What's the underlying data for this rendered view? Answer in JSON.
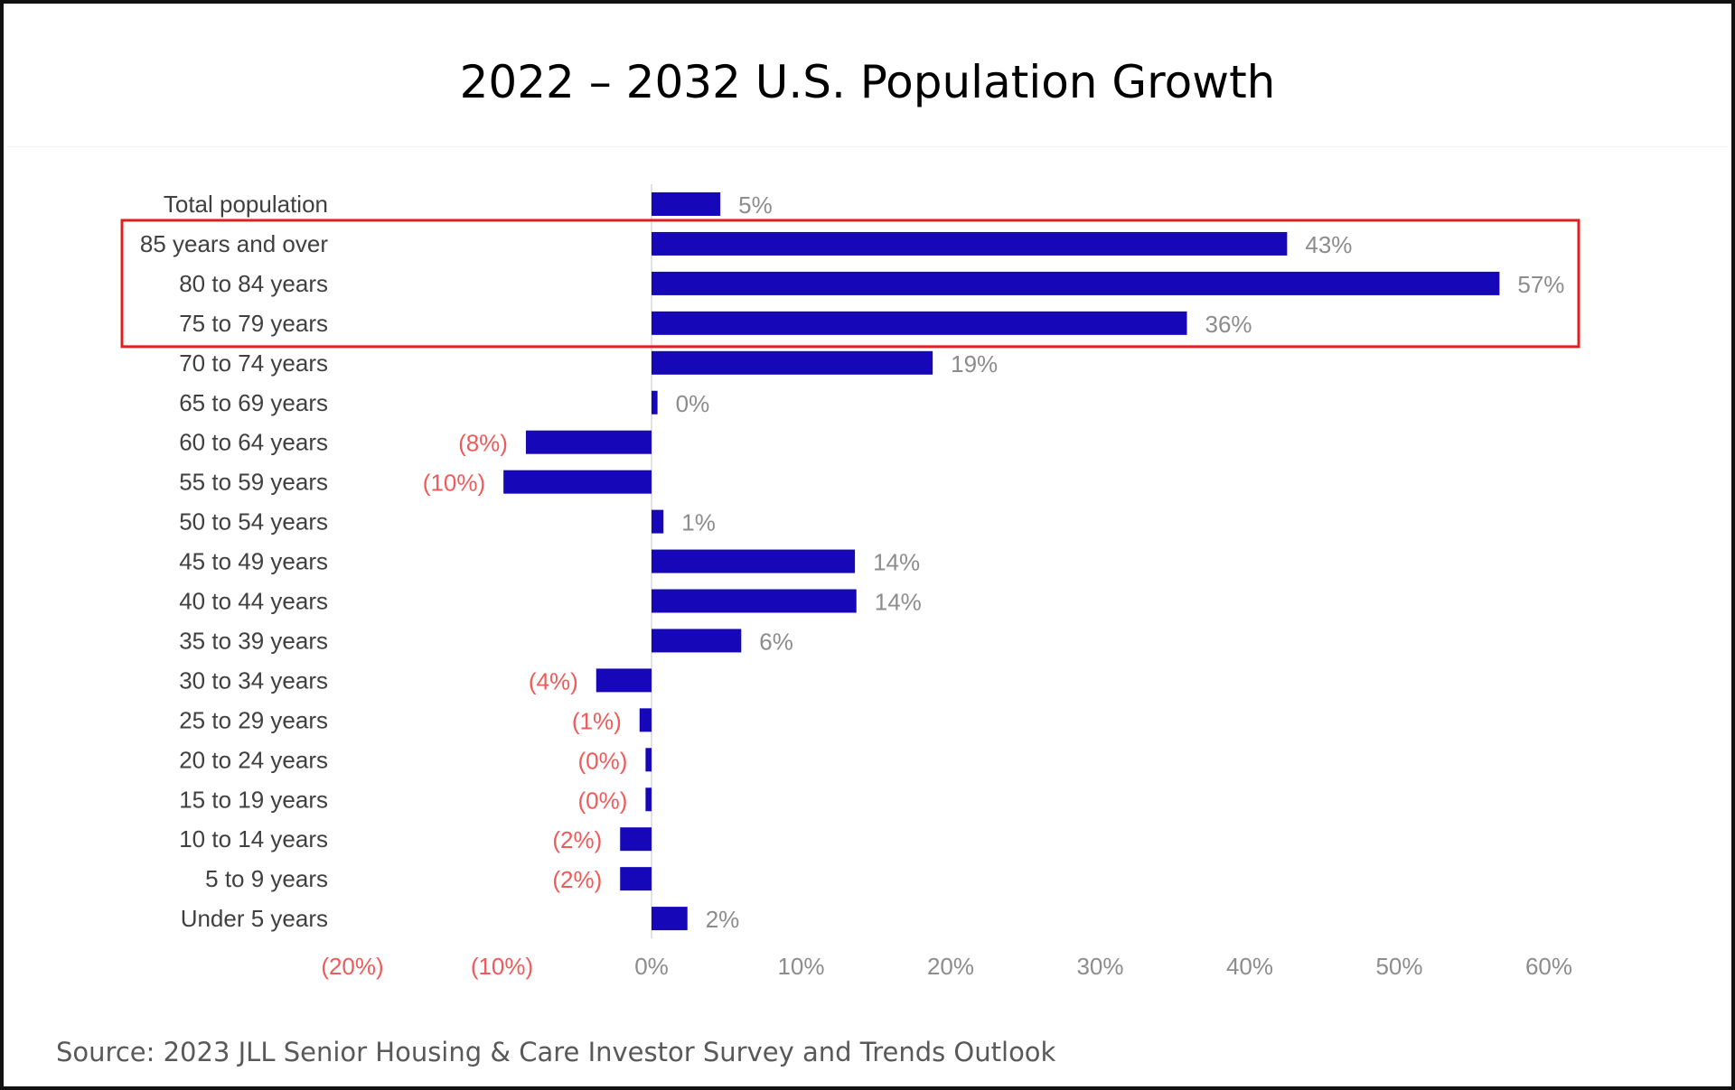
{
  "title": "2022 – 2032 U.S. Population Growth",
  "source": "Source: 2023 JLL Senior Housing & Care Investor Survey and Trends Outlook",
  "colors": {
    "bar": "#1608b8",
    "positive_label": "#8c8c8c",
    "negative_label": "#f05a5a",
    "axis_text": "#8c8c8c",
    "category_text": "#404040",
    "highlight_box": "#e02020"
  },
  "chart_data": {
    "type": "bar",
    "orientation": "horizontal",
    "categories": [
      "Total population",
      "85 years and over",
      "80 to 84 years",
      "75 to 79 years",
      "70 to 74 years",
      "65 to 69 years",
      "60 to 64 years",
      "55 to 59 years",
      "50 to 54 years",
      "45 to 49 years",
      "40 to 44 years",
      "35 to 39 years",
      "30 to 34 years",
      "25 to 29 years",
      "20 to 24 years",
      "15 to 19 years",
      "10 to 14 years",
      "5 to 9 years",
      "Under 5 years"
    ],
    "values": [
      4.6,
      42.5,
      56.7,
      35.8,
      18.8,
      0.4,
      -8.4,
      -9.9,
      0.8,
      13.6,
      13.7,
      6.0,
      -3.7,
      -0.8,
      -0.4,
      -0.4,
      -2.1,
      -2.1,
      2.4
    ],
    "data_labels": [
      "5%",
      "43%",
      "57%",
      "36%",
      "19%",
      "0%",
      "(8%)",
      "(10%)",
      "1%",
      "14%",
      "14%",
      "6%",
      "(4%)",
      "(1%)",
      "(0%)",
      "(0%)",
      "(2%)",
      "(2%)",
      "2%"
    ],
    "x_ticks": [
      -20,
      -10,
      0,
      10,
      20,
      30,
      40,
      50,
      60
    ],
    "x_tick_labels": [
      "(20%)",
      "(10%)",
      "0%",
      "10%",
      "20%",
      "30%",
      "40%",
      "50%",
      "60%"
    ],
    "xlim": [
      -20,
      60
    ],
    "grid": false,
    "legend": "none",
    "highlighted_categories": [
      "85 years and over",
      "80 to 84 years",
      "75 to 79 years"
    ]
  }
}
